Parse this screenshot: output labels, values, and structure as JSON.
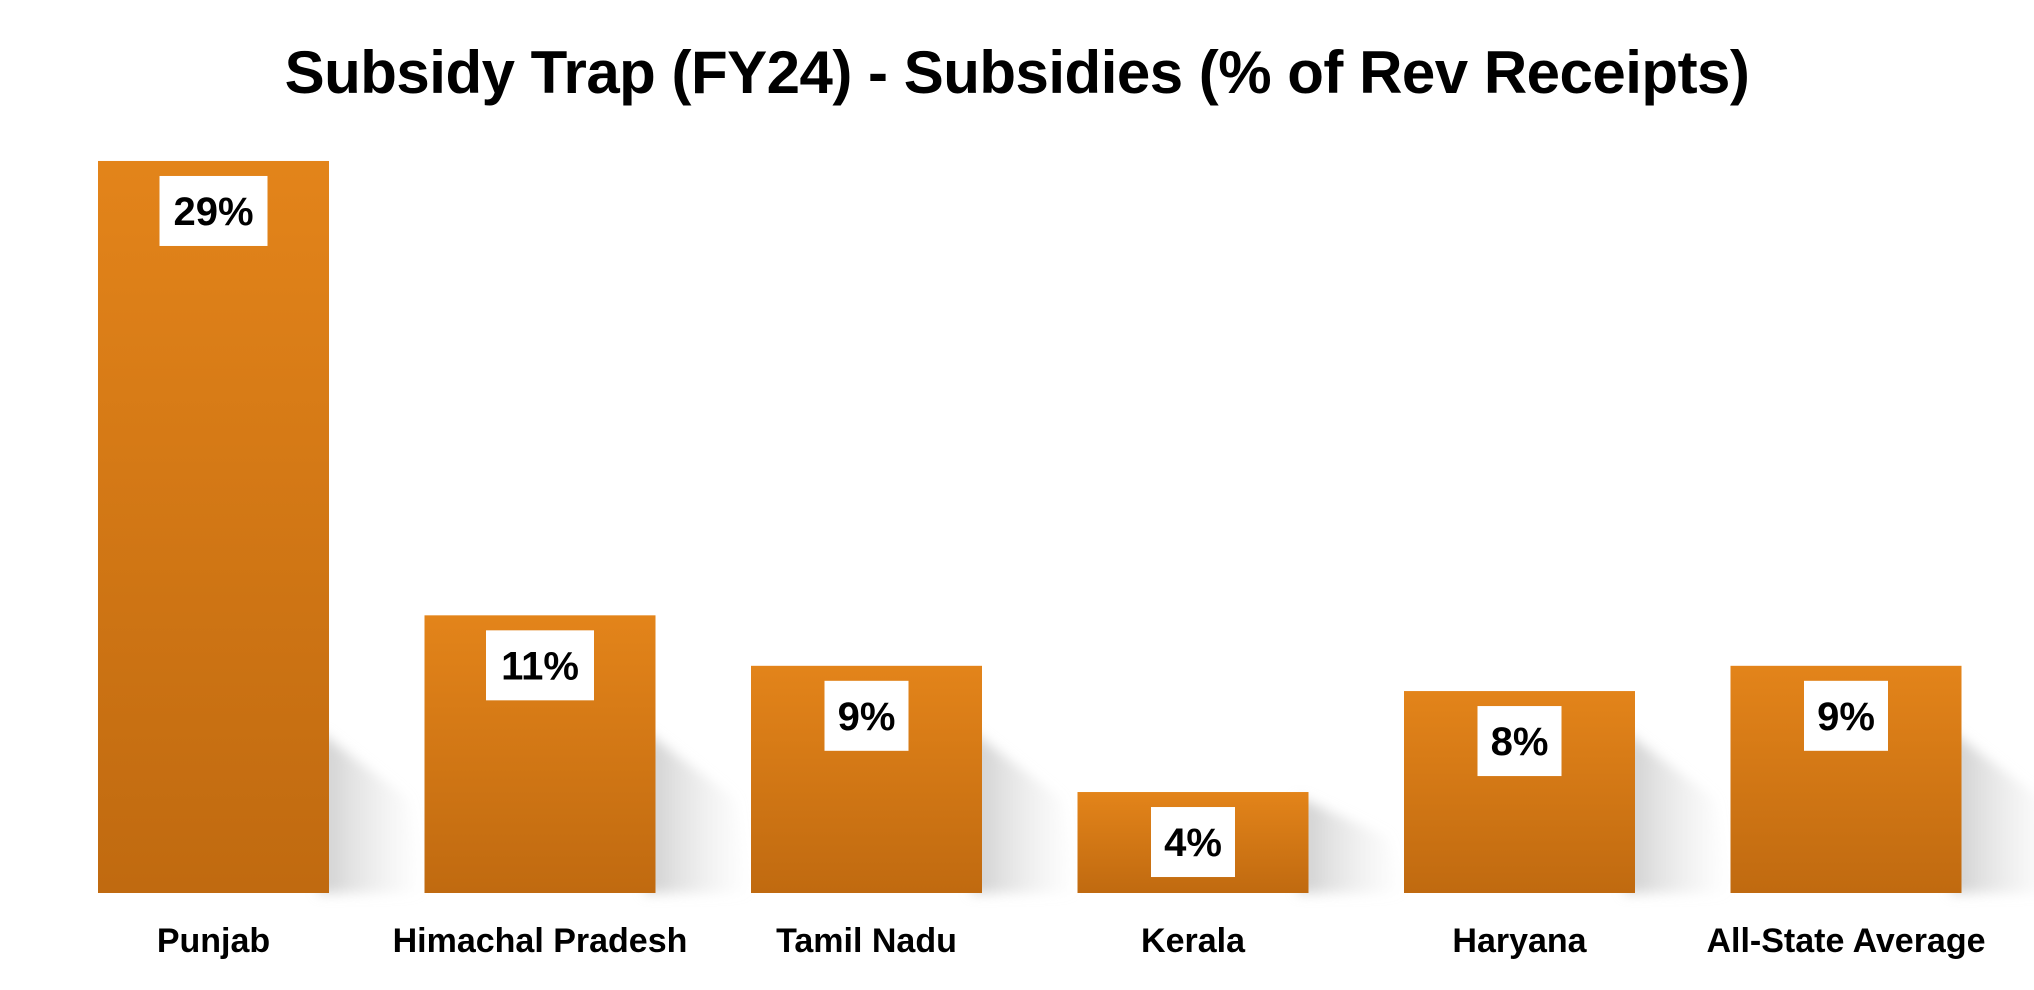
{
  "chart_data": {
    "type": "bar",
    "title": "Subsidy Trap (FY24) - Subsidies (% of Rev Receipts)",
    "categories": [
      "Punjab",
      "Himachal Pradesh",
      "Tamil Nadu",
      "Kerala",
      "Haryana",
      "All-State Average"
    ],
    "values": [
      29,
      11,
      9,
      4,
      8,
      9
    ],
    "data_labels": [
      "29%",
      "11%",
      "9%",
      "4%",
      "8%",
      "9%"
    ],
    "ylim": [
      0,
      33
    ],
    "grid": false,
    "legend": "none",
    "colors": {
      "bar_top": "#e3841a",
      "bar_bottom": "#c06a10",
      "shadow": "#cfcfcf",
      "label_box": "#ffffff",
      "text": "#000000"
    }
  }
}
